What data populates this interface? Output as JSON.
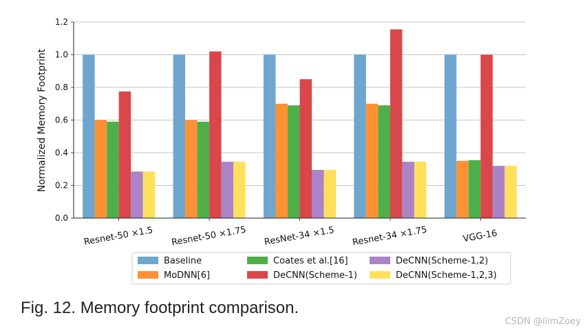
{
  "chart_data": {
    "type": "bar",
    "title": "",
    "xlabel": "",
    "ylabel": "Normalized Memory Footprint",
    "ylim": [
      0,
      1.2
    ],
    "yticks": [
      "0.0",
      "0.2",
      "0.4",
      "0.6",
      "0.8",
      "1.0",
      "1.2"
    ],
    "grid": "horizontal",
    "legend_position": "bottom",
    "categories": [
      "Resnet-50 ×1.5",
      "Resnet-50 ×1.75",
      "ResNet-34 ×1.5",
      "Resnet-34 ×1.75",
      "VGG-16"
    ],
    "series": [
      {
        "name": "Baseline",
        "color": "#6fa6cd",
        "values": [
          1.0,
          1.0,
          1.0,
          1.0,
          1.0
        ]
      },
      {
        "name": "MoDNN[6]",
        "color": "#ff9135",
        "values": [
          0.6,
          0.6,
          0.7,
          0.7,
          0.35
        ]
      },
      {
        "name": "Coates et al.[16]",
        "color": "#4fb04a",
        "values": [
          0.59,
          0.59,
          0.69,
          0.69,
          0.355
        ]
      },
      {
        "name": "DeCNN(Scheme-1)",
        "color": "#d9474b",
        "values": [
          0.775,
          1.02,
          0.85,
          1.155,
          1.0
        ]
      },
      {
        "name": "DeCNN(Scheme-1,2)",
        "color": "#ab84c8",
        "values": [
          0.285,
          0.345,
          0.295,
          0.345,
          0.32
        ]
      },
      {
        "name": "DeCNN(Scheme-1,2,3)",
        "color": "#ffe05c",
        "values": [
          0.285,
          0.345,
          0.295,
          0.345,
          0.32
        ]
      }
    ]
  },
  "caption": "Fig. 12. Memory footprint comparison.",
  "watermark": "CSDN @iiimZoey"
}
